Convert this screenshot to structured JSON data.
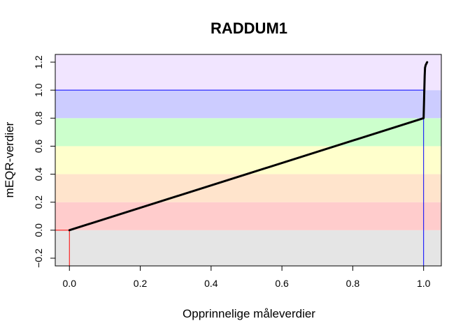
{
  "chart_data": {
    "type": "line",
    "title": "RADDUM1",
    "xlabel": "Opprinnelige måleverdier",
    "ylabel": "mEQR-verdier",
    "xlim": [
      -0.04,
      1.05
    ],
    "ylim": [
      -0.255,
      1.255
    ],
    "xticks": [
      0.0,
      0.2,
      0.4,
      0.6,
      0.8,
      1.0
    ],
    "xtick_labels": [
      "0.0",
      "0.2",
      "0.4",
      "0.6",
      "0.8",
      "1.0"
    ],
    "yticks": [
      -0.2,
      0.0,
      0.2,
      0.4,
      0.6,
      0.8,
      1.0,
      1.2
    ],
    "ytick_labels": [
      "−0.2",
      "0.0",
      "0.2",
      "0.4",
      "0.6",
      "0.8",
      "1.0",
      "1.2"
    ],
    "bands": [
      {
        "from": -0.255,
        "to": 0.0,
        "color": "#e5e5e5"
      },
      {
        "from": 0.0,
        "to": 0.2,
        "color": "#ffcccc"
      },
      {
        "from": 0.2,
        "to": 0.4,
        "color": "#ffe4cc"
      },
      {
        "from": 0.4,
        "to": 0.6,
        "color": "#ffffcc"
      },
      {
        "from": 0.6,
        "to": 0.8,
        "color": "#ccffcc"
      },
      {
        "from": 0.8,
        "to": 1.0,
        "color": "#ccccff"
      },
      {
        "from": 1.0,
        "to": 1.255,
        "color": "#f1e5ff"
      }
    ],
    "series": [
      {
        "color": "#000000",
        "points": [
          [
            0.0,
            0.0
          ],
          [
            1.0,
            0.8
          ],
          [
            1.001,
            0.9
          ],
          [
            1.002,
            1.0
          ],
          [
            1.003,
            1.1
          ],
          [
            1.004,
            1.16
          ],
          [
            1.006,
            1.18
          ],
          [
            1.01,
            1.2
          ]
        ]
      }
    ],
    "reference_lines": [
      {
        "type": "h",
        "y": 1.0,
        "x_from": -0.04,
        "x_to": 1.0,
        "color": "#0000ff"
      },
      {
        "type": "v",
        "x": 0.0,
        "y_from": -0.255,
        "y_to": 0.0,
        "color": "#ff0000"
      },
      {
        "type": "h",
        "y": 0.0,
        "x_from": -0.04,
        "x_to": 0.0,
        "color": "#ff0000"
      },
      {
        "type": "v",
        "x": 1.0,
        "y_from": -0.255,
        "y_to": 1.0,
        "color": "#0000ff"
      }
    ],
    "grid": false,
    "legend": "none"
  }
}
